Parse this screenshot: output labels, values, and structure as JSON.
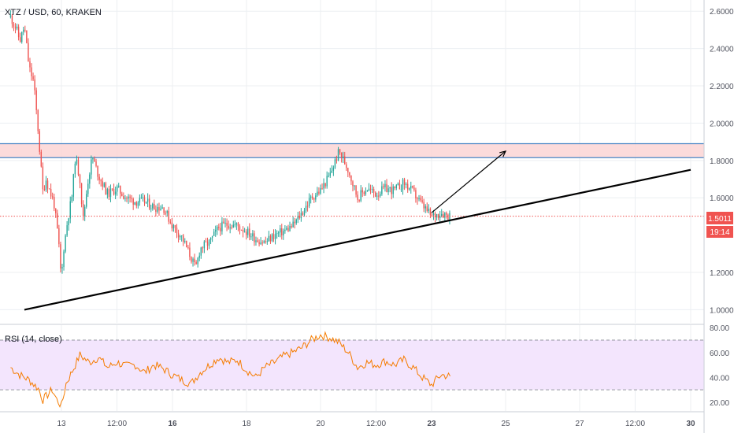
{
  "header": {
    "symbol_title": "XTZ / USD, 60, KRAKEN"
  },
  "rsi_panel": {
    "title": "RSI (14, close)"
  },
  "price_badge": {
    "value": "1.5011",
    "countdown": "19:14"
  },
  "colors": {
    "up": "#26a69a",
    "down": "#ef5350",
    "rsi_line": "#f57c00",
    "rsi_band": "#f3e5fd",
    "zone_fill": "#fbd5d5",
    "zone_line": "#4a86c6",
    "trendline": "#000000",
    "last_price": "#f05350",
    "grid": "#eceff2"
  },
  "chart_data": [
    {
      "type": "candlestick",
      "x_ticks": [
        "13",
        "12:00",
        "16",
        "18",
        "20",
        "12:00",
        "23",
        "25",
        "27",
        "12:00",
        "30"
      ],
      "y_ticks": [
        "2.6000",
        "2.4000",
        "2.2000",
        "2.0000",
        "1.8000",
        "1.6000",
        "1.2000",
        "1.0000"
      ],
      "ylim": [
        0.93,
        2.66
      ],
      "last_price": 1.5011,
      "resistance_zone": [
        1.815,
        1.89
      ],
      "trendline": {
        "from": {
          "x": "12 Nov",
          "y": 1.0
        },
        "to": {
          "x": "30 Nov",
          "y": 1.75
        }
      },
      "projection_arrow": {
        "from": {
          "x": "23 Nov",
          "y": 1.52
        },
        "to": {
          "x": "25 Nov",
          "y": 1.85
        }
      },
      "close_path": [
        [
          "11 Nov 15:00",
          2.57
        ],
        [
          "11 Nov 19:00",
          2.5
        ],
        [
          "11 Nov 21:00",
          2.44
        ],
        [
          "12 Nov 00:00",
          2.52
        ],
        [
          "12 Nov 03:00",
          2.3
        ],
        [
          "12 Nov 06:00",
          2.22
        ],
        [
          "12 Nov 09:00",
          1.95
        ],
        [
          "12 Nov 12:00",
          1.63
        ],
        [
          "12 Nov 14:00",
          1.7
        ],
        [
          "12 Nov 17:00",
          1.62
        ],
        [
          "12 Nov 19:00",
          1.58
        ],
        [
          "12 Nov 22:00",
          1.38
        ],
        [
          "13 Nov 00:00",
          1.15
        ],
        [
          "13 Nov 01:00",
          1.3
        ],
        [
          "13 Nov 04:00",
          1.48
        ],
        [
          "13 Nov 07:00",
          1.62
        ],
        [
          "13 Nov 09:00",
          1.82
        ],
        [
          "13 Nov 12:00",
          1.7
        ],
        [
          "13 Nov 14:00",
          1.48
        ],
        [
          "13 Nov 17:00",
          1.68
        ],
        [
          "13 Nov 20:00",
          1.82
        ],
        [
          "14 Nov 00:00",
          1.72
        ],
        [
          "14 Nov 03:00",
          1.67
        ],
        [
          "14 Nov 06:00",
          1.62
        ],
        [
          "14 Nov 12:00",
          1.65
        ],
        [
          "14 Nov 18:00",
          1.6
        ],
        [
          "15 Nov 00:00",
          1.58
        ],
        [
          "15 Nov 06:00",
          1.58
        ],
        [
          "15 Nov 12:00",
          1.55
        ],
        [
          "15 Nov 18:00",
          1.55
        ],
        [
          "16 Nov 00:00",
          1.45
        ],
        [
          "16 Nov 06:00",
          1.39
        ],
        [
          "16 Nov 12:00",
          1.28
        ],
        [
          "16 Nov 15:00",
          1.22
        ],
        [
          "16 Nov 18:00",
          1.33
        ],
        [
          "17 Nov 00:00",
          1.36
        ],
        [
          "17 Nov 06:00",
          1.44
        ],
        [
          "17 Nov 12:00",
          1.46
        ],
        [
          "17 Nov 18:00",
          1.45
        ],
        [
          "18 Nov 00:00",
          1.42
        ],
        [
          "18 Nov 06:00",
          1.38
        ],
        [
          "18 Nov 12:00",
          1.36
        ],
        [
          "18 Nov 18:00",
          1.4
        ],
        [
          "19 Nov 00:00",
          1.42
        ],
        [
          "19 Nov 06:00",
          1.45
        ],
        [
          "19 Nov 12:00",
          1.52
        ],
        [
          "19 Nov 18:00",
          1.6
        ],
        [
          "20 Nov 00:00",
          1.64
        ],
        [
          "20 Nov 06:00",
          1.72
        ],
        [
          "20 Nov 12:00",
          1.85
        ],
        [
          "20 Nov 18:00",
          1.75
        ],
        [
          "21 Nov 00:00",
          1.6
        ],
        [
          "21 Nov 06:00",
          1.65
        ],
        [
          "21 Nov 12:00",
          1.62
        ],
        [
          "21 Nov 18:00",
          1.65
        ],
        [
          "22 Nov 00:00",
          1.64
        ],
        [
          "22 Nov 06:00",
          1.68
        ],
        [
          "22 Nov 12:00",
          1.63
        ],
        [
          "22 Nov 18:00",
          1.56
        ],
        [
          "23 Nov 00:00",
          1.5
        ],
        [
          "23 Nov 06:00",
          1.52
        ],
        [
          "23 Nov 12:00",
          1.505
        ]
      ]
    },
    {
      "type": "line",
      "name": "RSI (14, close)",
      "y_ticks": [
        "80.00",
        "60.00",
        "40.00",
        "20.00"
      ],
      "ylim": [
        13,
        82
      ],
      "band": [
        30,
        70
      ],
      "path": [
        [
          "11 Nov 15:00",
          48
        ],
        [
          "11 Nov 21:00",
          42
        ],
        [
          "12 Nov 03:00",
          38
        ],
        [
          "12 Nov 09:00",
          31
        ],
        [
          "12 Nov 12:00",
          22
        ],
        [
          "12 Nov 15:00",
          26
        ],
        [
          "12 Nov 18:00",
          30
        ],
        [
          "12 Nov 21:00",
          22
        ],
        [
          "13 Nov 00:00",
          17
        ],
        [
          "13 Nov 03:00",
          35
        ],
        [
          "13 Nov 09:00",
          50
        ],
        [
          "13 Nov 12:00",
          58
        ],
        [
          "13 Nov 18:00",
          52
        ],
        [
          "14 Nov 00:00",
          56
        ],
        [
          "14 Nov 06:00",
          48
        ],
        [
          "14 Nov 12:00",
          52
        ],
        [
          "14 Nov 18:00",
          49
        ],
        [
          "15 Nov 00:00",
          50
        ],
        [
          "15 Nov 06:00",
          44
        ],
        [
          "15 Nov 12:00",
          50
        ],
        [
          "15 Nov 18:00",
          47
        ],
        [
          "16 Nov 00:00",
          42
        ],
        [
          "16 Nov 06:00",
          38
        ],
        [
          "16 Nov 12:00",
          35
        ],
        [
          "16 Nov 18:00",
          44
        ],
        [
          "17 Nov 00:00",
          50
        ],
        [
          "17 Nov 06:00",
          56
        ],
        [
          "17 Nov 12:00",
          52
        ],
        [
          "17 Nov 18:00",
          54
        ],
        [
          "18 Nov 00:00",
          46
        ],
        [
          "18 Nov 06:00",
          40
        ],
        [
          "18 Nov 12:00",
          48
        ],
        [
          "18 Nov 18:00",
          52
        ],
        [
          "19 Nov 00:00",
          57
        ],
        [
          "19 Nov 06:00",
          60
        ],
        [
          "19 Nov 12:00",
          64
        ],
        [
          "19 Nov 18:00",
          70
        ],
        [
          "20 Nov 00:00",
          74
        ],
        [
          "20 Nov 06:00",
          72
        ],
        [
          "20 Nov 12:00",
          68
        ],
        [
          "20 Nov 18:00",
          60
        ],
        [
          "21 Nov 00:00",
          48
        ],
        [
          "21 Nov 06:00",
          52
        ],
        [
          "21 Nov 12:00",
          50
        ],
        [
          "21 Nov 18:00",
          53
        ],
        [
          "22 Nov 00:00",
          50
        ],
        [
          "22 Nov 06:00",
          54
        ],
        [
          "22 Nov 12:00",
          48
        ],
        [
          "22 Nov 18:00",
          40
        ],
        [
          "23 Nov 00:00",
          34
        ],
        [
          "23 Nov 06:00",
          42
        ],
        [
          "23 Nov 12:00",
          41
        ]
      ]
    }
  ]
}
